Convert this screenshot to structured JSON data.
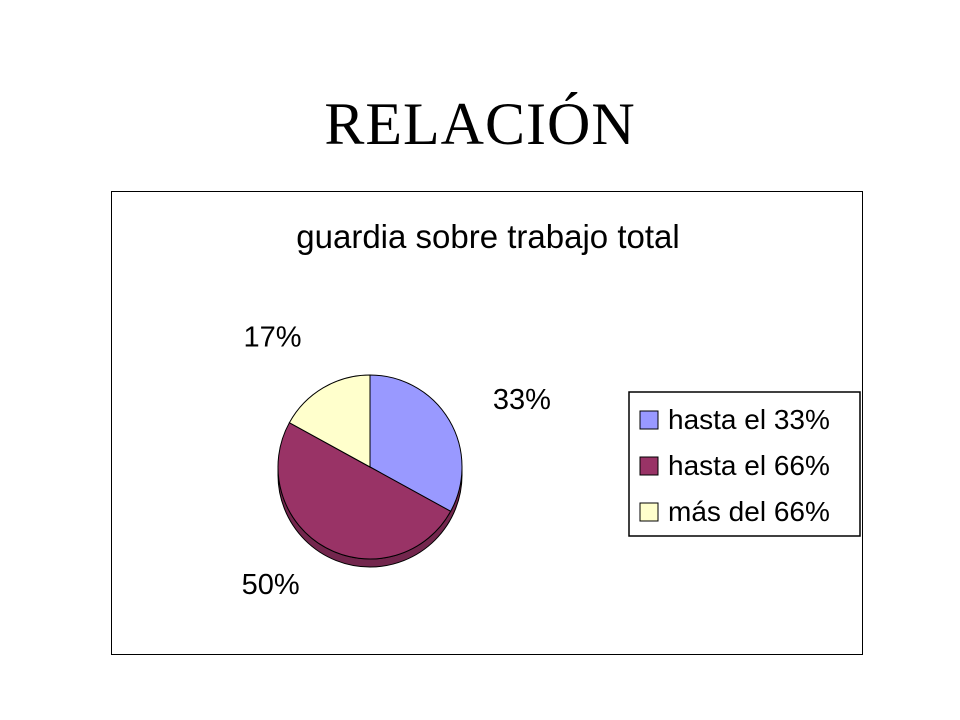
{
  "slide": {
    "title": "RELACIÓN"
  },
  "chart_data": {
    "type": "pie",
    "title": "guardia sobre trabajo total",
    "categories": [
      "hasta el 33%",
      "hasta el 66%",
      "más del 66%"
    ],
    "values": [
      33,
      50,
      17
    ],
    "labels": [
      "33%",
      "50%",
      "17%"
    ],
    "colors": [
      "#9999ff",
      "#993366",
      "#ffffcc"
    ],
    "legend_position": "right"
  }
}
